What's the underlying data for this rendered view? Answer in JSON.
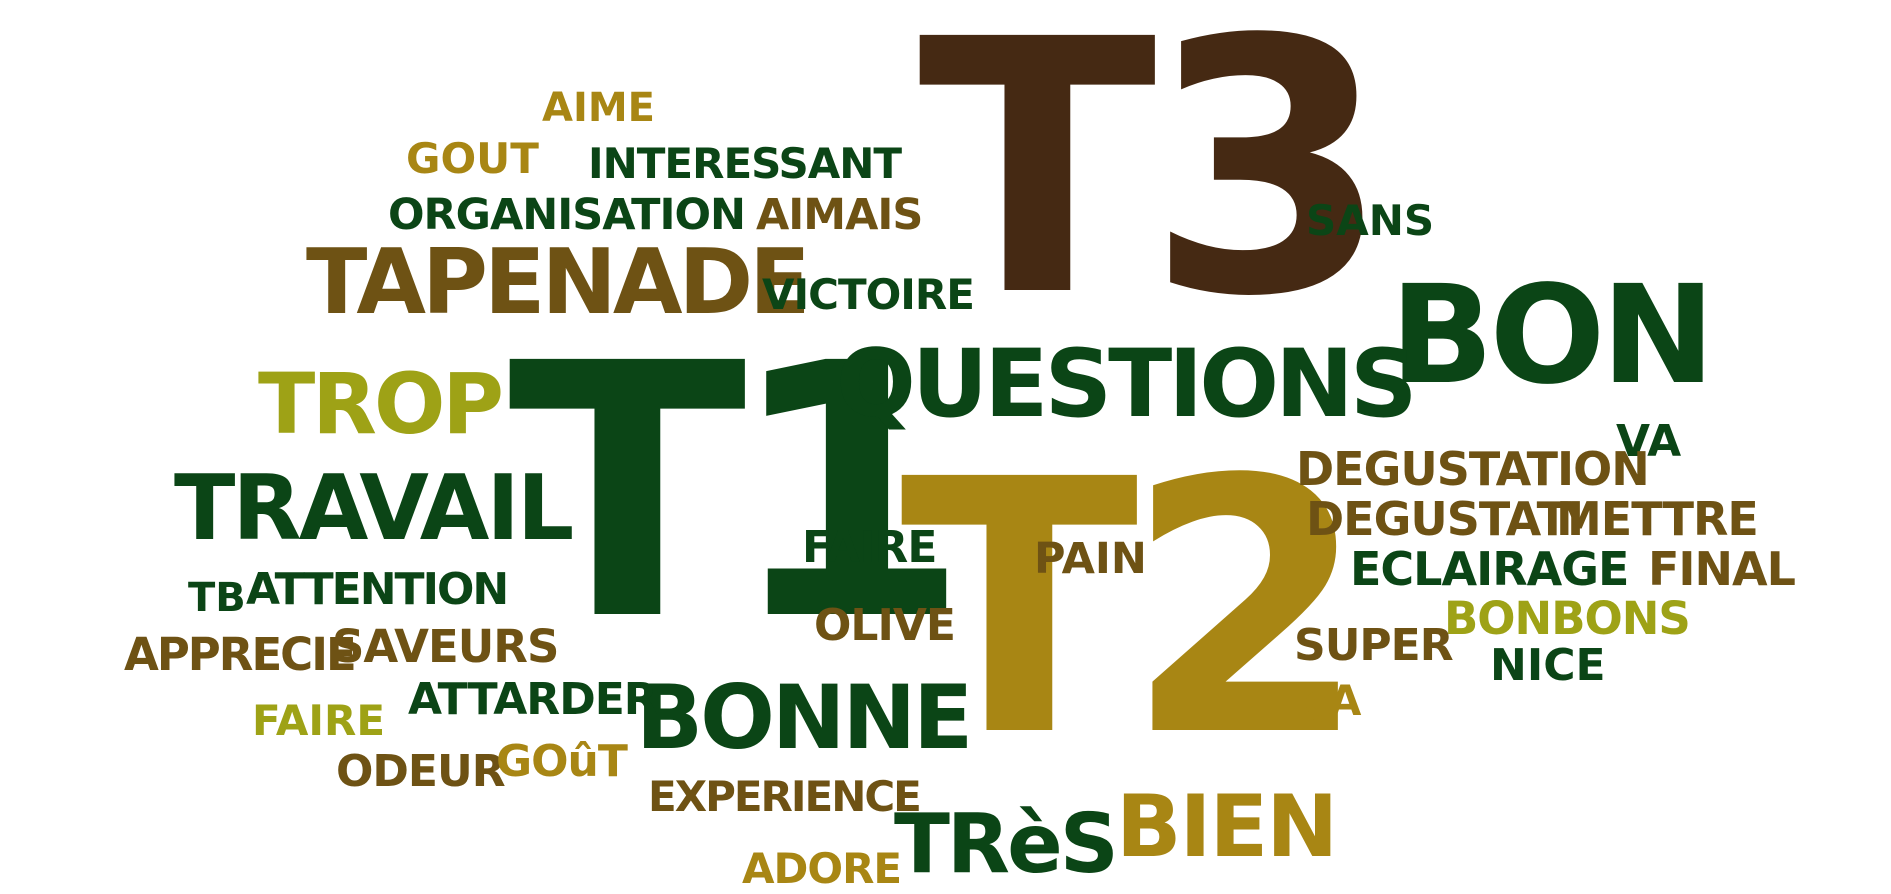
{
  "words": {
    "t3": "T3",
    "t1": "T1",
    "t2": "T2",
    "bon": "BON",
    "questions": "QUESTIONS",
    "tapenade": "TAPENADE",
    "travail": "TRAVAIL",
    "trop": "TROP",
    "bonne": "BONNE",
    "tres": "TRèS",
    "bien": "BIEN",
    "aime": "AIME",
    "gout": "GOUT",
    "interessant": "INTERESSANT",
    "organisation": "ORGANISATION",
    "aimais": "AIMAIS",
    "victoire": "VICTOIRE",
    "sans": "SANS",
    "va": "VA",
    "degustation": "DEGUSTATION",
    "degustati": "DEGUSTATI",
    "mettre": "METTRE",
    "eclairage": "ECLAIRAGE",
    "final": "FINAL",
    "bonbons": "BONBONS",
    "super": "SUPER",
    "nice": "NICE",
    "ca": "çA",
    "faire_center": "FAIRE",
    "pain": "PAIN",
    "olive": "OLIVE",
    "tb": "TB",
    "attention": "ATTENTION",
    "apprecie": "APPRECIE",
    "saveurs": "SAVEURS",
    "attarder": "ATTARDER",
    "faire_left": "FAIRE",
    "odeur": "ODEUR",
    "gout_accent": "GOûT",
    "experience": "EXPERIENCE",
    "adore": "ADORE"
  },
  "colors": {
    "dark_green": "#0b4516",
    "brown": "#6e5214",
    "gold": "#a88614",
    "olive": "#9ea216",
    "chocolate": "#452913"
  }
}
